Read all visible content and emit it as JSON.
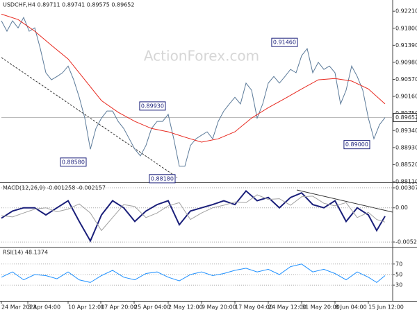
{
  "chart_data": [
    {
      "type": "line",
      "title": "USDCHF,H4  0.89711 0.89741 0.89575 0.89652",
      "watermark": "ActionForex.com",
      "xlim": [
        0,
        563
      ],
      "ylim": [
        0.8811,
        0.9248
      ],
      "yticks": [
        {
          "value": 0.9221,
          "label": "0.92210"
        },
        {
          "value": 0.918,
          "label": "0.91800"
        },
        {
          "value": 0.9139,
          "label": "0.91390"
        },
        {
          "value": 0.9098,
          "label": "0.90980"
        },
        {
          "value": 0.9057,
          "label": "0.90570"
        },
        {
          "value": 0.9016,
          "label": "0.90160"
        },
        {
          "value": 0.8975,
          "label": "0.89750"
        },
        {
          "value": 0.8934,
          "label": "0.89340"
        },
        {
          "value": 0.8893,
          "label": "0.88930"
        },
        {
          "value": 0.8852,
          "label": "0.88520"
        },
        {
          "value": 0.8811,
          "label": "0.88110"
        }
      ],
      "grid": false,
      "last_price": {
        "value": 0.89652,
        "label": "0.89652"
      },
      "annotations": [
        {
          "x": 428,
          "value": 0.9146,
          "label": "0.91460"
        },
        {
          "x": 238,
          "value": 0.8993,
          "label": "0.89930"
        },
        {
          "x": 124,
          "value": 0.8858,
          "label": "0.88580"
        },
        {
          "x": 252,
          "value": 0.8818,
          "label": "0.88180"
        },
        {
          "x": 532,
          "value": 0.89,
          "label": "0.89000"
        }
      ],
      "series": [
        {
          "color": "#5b7a99",
          "x": [
            0,
            8,
            16,
            24,
            32,
            40,
            48,
            56,
            64,
            72,
            80,
            88,
            96,
            104,
            112,
            120,
            128,
            136,
            144,
            152,
            160,
            168,
            176,
            184,
            192,
            200,
            208,
            216,
            224,
            232,
            240,
            248,
            256,
            264,
            272,
            280,
            288,
            296,
            304,
            312,
            320,
            328,
            336,
            344,
            352,
            360,
            368,
            376,
            384,
            392,
            400,
            408,
            416,
            424,
            432,
            440,
            448,
            456,
            464,
            472,
            480,
            488,
            496,
            504,
            512,
            520,
            528,
            536,
            544,
            552
          ],
          "values": [
            0.9198,
            0.9173,
            0.9198,
            0.9181,
            0.9206,
            0.9173,
            0.9181,
            0.9131,
            0.9073,
            0.9056,
            0.9064,
            0.9073,
            0.9089,
            0.9056,
            0.9014,
            0.8964,
            0.8889,
            0.8939,
            0.8964,
            0.8981,
            0.8981,
            0.8956,
            0.8939,
            0.8914,
            0.8889,
            0.8873,
            0.8898,
            0.8939,
            0.8956,
            0.8956,
            0.8973,
            0.8914,
            0.8848,
            0.8848,
            0.8898,
            0.8914,
            0.8923,
            0.8931,
            0.8914,
            0.8956,
            0.8981,
            0.8998,
            0.9014,
            0.8998,
            0.9048,
            0.9031,
            0.8964,
            0.8998,
            0.9048,
            0.9064,
            0.9048,
            0.9064,
            0.9081,
            0.9073,
            0.9114,
            0.9131,
            0.9073,
            0.9098,
            0.9081,
            0.9089,
            0.9073,
            0.8998,
            0.9031,
            0.9089,
            0.9064,
            0.9031,
            0.8964,
            0.8914,
            0.8948,
            0.89652
          ]
        },
        {
          "color": "#e8281e",
          "x": [
            0,
            24,
            48,
            72,
            96,
            120,
            144,
            168,
            192,
            216,
            240,
            264,
            288,
            312,
            336,
            360,
            384,
            408,
            432,
            456,
            480,
            504,
            528,
            552
          ],
          "values": [
            0.9214,
            0.9201,
            0.9173,
            0.9139,
            0.9106,
            0.9056,
            0.9006,
            0.8978,
            0.8956,
            0.8939,
            0.8931,
            0.8918,
            0.8906,
            0.8914,
            0.8931,
            0.8964,
            0.8989,
            0.9011,
            0.9034,
            0.9056,
            0.9059,
            0.9053,
            0.9034,
            0.8998
          ]
        }
      ]
    },
    {
      "type": "line",
      "title": "MACD(12,26,9) -0.001258 -0.002157",
      "xlim": [
        0,
        563
      ],
      "ylim": [
        -0.005902,
        0.003712
      ],
      "yticks": [
        0.003078,
        {
          "value": 0,
          "label": "0.00"
        },
        -0.005268
      ],
      "grid": true,
      "series": [
        {
          "color": "#1a1f7a",
          "x": [
            0,
            16,
            32,
            48,
            64,
            80,
            96,
            112,
            128,
            144,
            160,
            176,
            192,
            208,
            224,
            240,
            256,
            272,
            288,
            304,
            320,
            336,
            352,
            368,
            384,
            400,
            416,
            432,
            448,
            464,
            480,
            496,
            512,
            528,
            540,
            552
          ],
          "values": [
            -0.0016,
            -0.0005,
            0,
            0,
            -0.0011,
            0,
            0.0011,
            -0.0021,
            -0.0051,
            -0.0011,
            0.0011,
            0,
            -0.0021,
            -0.0005,
            0.0005,
            0.0011,
            -0.0026,
            -0.0005,
            0,
            0.0005,
            0.0011,
            0.0005,
            0.0026,
            0.0011,
            0.0016,
            0,
            0.0016,
            0.0023,
            0.0005,
            0,
            0.0011,
            -0.0021,
            0,
            -0.0011,
            -0.0035,
            -0.0013
          ]
        },
        {
          "color": "#a0a0a0",
          "x": [
            0,
            16,
            32,
            48,
            64,
            80,
            96,
            112,
            128,
            144,
            160,
            176,
            192,
            208,
            224,
            240,
            256,
            272,
            288,
            304,
            320,
            336,
            352,
            368,
            384,
            400,
            416,
            432,
            448,
            464,
            480,
            496,
            512,
            528,
            540,
            552
          ],
          "values": [
            -0.0012,
            -0.0014,
            -0.0008,
            -0.0002,
            0,
            -0.0006,
            -0.0002,
            0.0006,
            -0.0008,
            -0.0035,
            -0.0015,
            0.0005,
            0.0002,
            -0.0015,
            -0.0008,
            0.0003,
            0.0008,
            -0.0018,
            -0.0008,
            0,
            0.0004,
            0.0009,
            0.0008,
            0.002,
            0.0013,
            0.0014,
            0.0004,
            0.0017,
            0.0018,
            0.0007,
            0.0003,
            0.0008,
            -0.0015,
            -0.0007,
            -0.0018,
            -0.0022
          ]
        }
      ]
    },
    {
      "type": "line",
      "title": "RSI(14) 48.1374",
      "xlim": [
        0,
        563
      ],
      "ylim": [
        0,
        100
      ],
      "yticks": [
        70,
        50,
        30
      ],
      "grid": true,
      "xticks": [
        {
          "value": 0,
          "label": "24 Mar 2023"
        },
        {
          "value": 38,
          "label": "3 Apr 04:00"
        },
        {
          "value": 96,
          "label": "10 Apr 12:00"
        },
        {
          "value": 143,
          "label": "17 Apr 20:00"
        },
        {
          "value": 191,
          "label": "25 Apr 04:00"
        },
        {
          "value": 240,
          "label": "2 May 12:00"
        },
        {
          "value": 288,
          "label": "9 May 20:00"
        },
        {
          "value": 336,
          "label": "17 May 04:00"
        },
        {
          "value": 384,
          "label": "24 May 12:00"
        },
        {
          "value": 432,
          "label": "31 May 20:00"
        },
        {
          "value": 480,
          "label": "8 Jun 04:00"
        },
        {
          "value": 528,
          "label": "15 Jun 12:00"
        }
      ],
      "series": [
        {
          "color": "#1e90ff",
          "x": [
            0,
            16,
            32,
            48,
            64,
            80,
            96,
            112,
            128,
            144,
            160,
            176,
            192,
            208,
            224,
            240,
            256,
            272,
            288,
            304,
            320,
            336,
            352,
            368,
            384,
            400,
            416,
            432,
            448,
            464,
            480,
            496,
            512,
            528,
            540,
            552
          ],
          "values": [
            45,
            55,
            40,
            50,
            48,
            42,
            55,
            40,
            35,
            48,
            58,
            45,
            40,
            52,
            55,
            45,
            38,
            50,
            55,
            48,
            52,
            58,
            62,
            55,
            60,
            50,
            65,
            70,
            55,
            60,
            52,
            40,
            55,
            45,
            35,
            48
          ]
        }
      ]
    }
  ]
}
